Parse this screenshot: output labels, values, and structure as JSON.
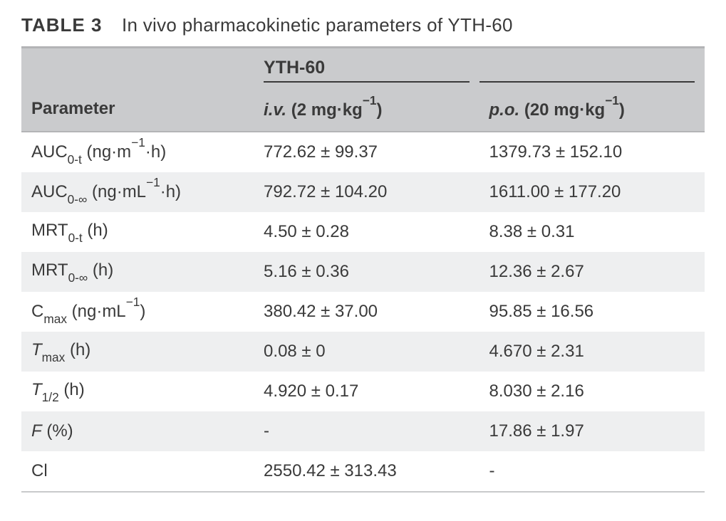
{
  "title": {
    "label": "TABLE 3",
    "caption": "In vivo pharmacokinetic parameters of YTH-60"
  },
  "table": {
    "background_header": "#cacbcd",
    "row_even_bg": "#eeeff0",
    "row_odd_bg": "#ffffff",
    "border_color": "#b3b4b6",
    "text_color": "#3a3a3a",
    "col_widths_pct": [
      34,
      33,
      33
    ],
    "group_header": {
      "compound": "YTH-60"
    },
    "columns": [
      {
        "key": "param",
        "header_plain": "Parameter",
        "header_html": "Parameter"
      },
      {
        "key": "iv",
        "header_plain": "i.v. (2 mg·kg⁻¹)",
        "header_html": "<span class='dose'>i.v.</span> (2 mg·kg<sup>&minus;1</sup>)"
      },
      {
        "key": "po",
        "header_plain": "p.o. (20 mg·kg⁻¹)",
        "header_html": "<span class='dose'>p.o.</span> (20 mg·kg<sup>&minus;1</sup>)"
      }
    ],
    "rows": [
      {
        "param_plain": "AUC0-t (ng·m⁻¹·h)",
        "param_html": "AUC<sub>0-t</sub> (ng·m<sup>&minus;1</sup>·h)",
        "iv": "772.62 ± 99.37",
        "po": "1379.73 ± 152.10"
      },
      {
        "param_plain": "AUC0-∞ (ng·mL⁻¹·h)",
        "param_html": "AUC<sub>0-&infin;</sub> (ng·mL<sup>&minus;1</sup>·h)",
        "iv": "792.72 ± 104.20",
        "po": "1611.00 ± 177.20"
      },
      {
        "param_plain": "MRT0-t (h)",
        "param_html": "MRT<sub>0-t</sub> (h)",
        "iv": "4.50 ± 0.28",
        "po": "8.38 ± 0.31"
      },
      {
        "param_plain": "MRT0-∞ (h)",
        "param_html": "MRT<sub>0-&infin;</sub> (h)",
        "iv": "5.16 ± 0.36",
        "po": "12.36 ± 2.67"
      },
      {
        "param_plain": "Cmax (ng·mL⁻¹)",
        "param_html": "C<sub>max</sub> (ng·mL<sup>&minus;1</sup>)",
        "iv": "380.42 ± 37.00",
        "po": "95.85 ± 16.56"
      },
      {
        "param_plain": "Tmax (h)",
        "param_html": "<span class='ital'>T</span><sub>max</sub> (h)",
        "iv": "0.08 ± 0",
        "po": "4.670 ± 2.31"
      },
      {
        "param_plain": "T1/2 (h)",
        "param_html": "<span class='ital'>T</span><sub>1/2</sub> (h)",
        "iv": "4.920 ± 0.17",
        "po": "8.030 ± 2.16"
      },
      {
        "param_plain": "F (%)",
        "param_html": "<span class='ital'>F</span> (%)",
        "iv": "-",
        "po": "17.86 ± 1.97"
      },
      {
        "param_plain": "Cl",
        "param_html": "Cl",
        "iv": "2550.42 ± 313.43",
        "po": "-"
      }
    ]
  }
}
